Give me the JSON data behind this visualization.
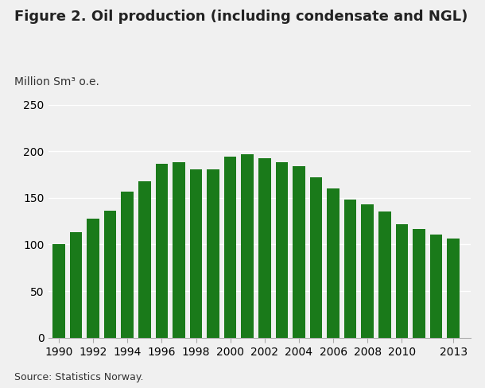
{
  "title": "Figure 2. Oil production (including condensate and NGL)",
  "ylabel": "Million Sm³ o.e.",
  "source": "Source: Statistics Norway.",
  "bar_color": "#1a7a1a",
  "background_color": "#f0f0f0",
  "plot_bg_color": "#f0f0f0",
  "grid_color": "#ffffff",
  "years": [
    1990,
    1991,
    1992,
    1993,
    1994,
    1995,
    1996,
    1997,
    1998,
    1999,
    2000,
    2001,
    2002,
    2003,
    2004,
    2005,
    2006,
    2007,
    2008,
    2009,
    2010,
    2011,
    2012,
    2013
  ],
  "values": [
    100,
    113,
    128,
    136,
    157,
    168,
    187,
    188,
    181,
    181,
    194,
    197,
    193,
    188,
    184,
    172,
    160,
    148,
    143,
    135,
    122,
    117,
    111,
    106
  ],
  "ylim": [
    0,
    250
  ],
  "yticks": [
    0,
    50,
    100,
    150,
    200,
    250
  ],
  "xticks": [
    1990,
    1992,
    1994,
    1996,
    1998,
    2000,
    2002,
    2004,
    2006,
    2008,
    2010,
    2013
  ],
  "title_fontsize": 13,
  "tick_fontsize": 10,
  "ylabel_fontsize": 10,
  "source_fontsize": 9
}
